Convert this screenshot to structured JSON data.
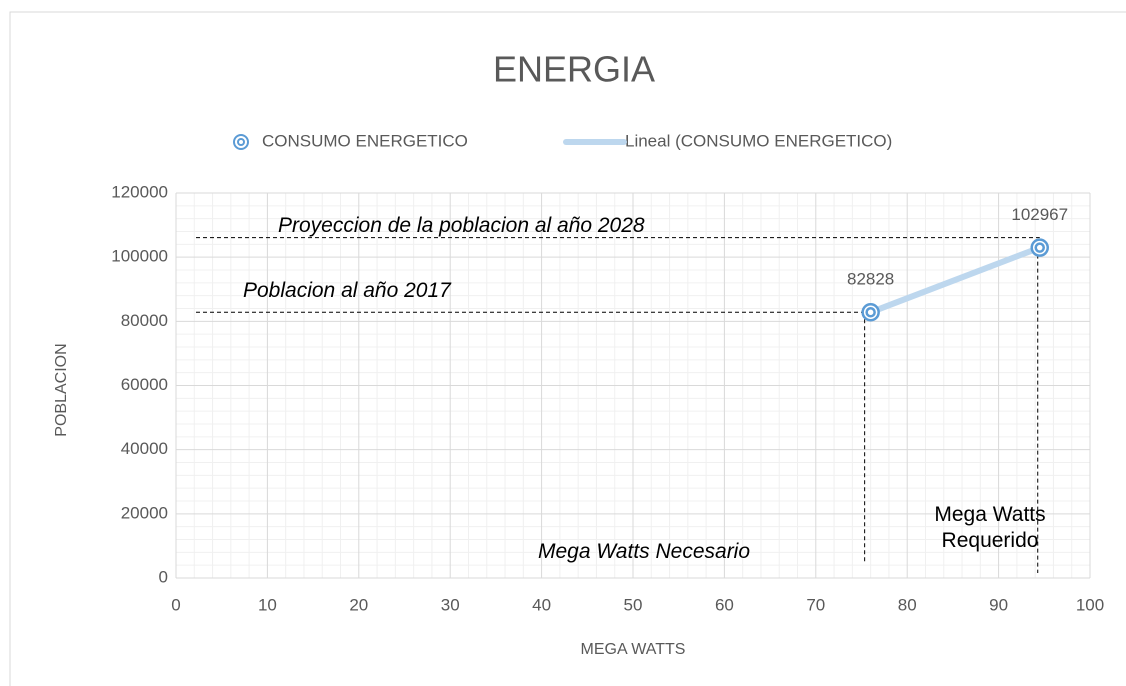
{
  "chart_data": {
    "type": "scatter",
    "title": "ENERGIA",
    "x_label": "MEGA WATTS",
    "y_label": "POBLACION",
    "series": [
      {
        "name": "CONSUMO ENERGETICO",
        "color": "#5b9bd5",
        "x": [
          76,
          94.5
        ],
        "values": [
          82828,
          102967
        ]
      }
    ],
    "trendline": {
      "name": "Lineal (CONSUMO ENERGETICO)",
      "color": "#bdd7ee"
    },
    "annotations": [
      "Proyeccion de la poblacion al año 2028",
      "Poblacion al año 2017",
      "Mega Watts Necesario",
      "Mega Watts Requerido"
    ],
    "xlim": [
      0,
      100
    ],
    "xticks": [
      0,
      10,
      20,
      30,
      40,
      50,
      60,
      70,
      80,
      90,
      100
    ],
    "ylim": [
      0,
      120000
    ],
    "yticks": [
      0,
      20000,
      40000,
      60000,
      80000,
      100000,
      120000
    ],
    "grid": true,
    "minor_grid": true,
    "legend": "top"
  }
}
